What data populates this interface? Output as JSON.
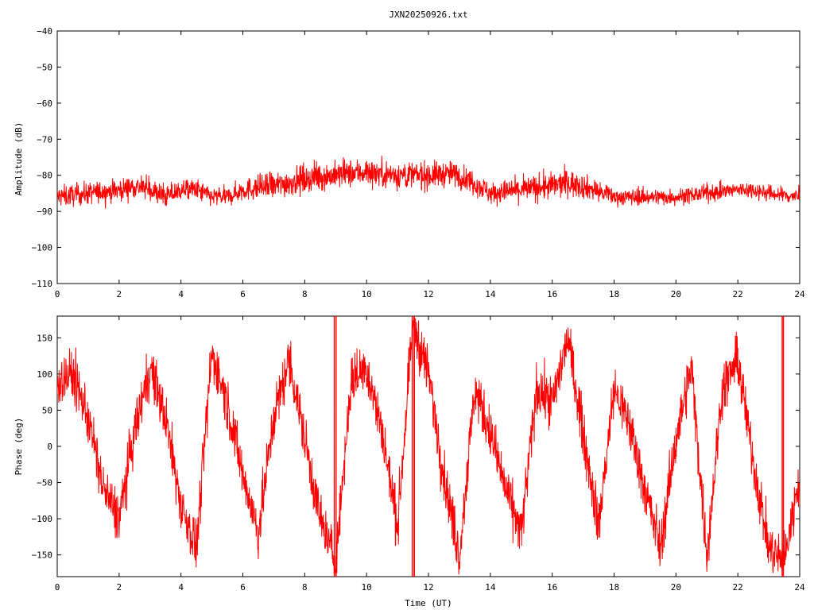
{
  "chart_data": [
    {
      "type": "line",
      "title": "JXN20250926.txt",
      "xlabel": "",
      "ylabel": "Amplitude (dB)",
      "xlim": [
        0,
        24
      ],
      "ylim": [
        -110,
        -40
      ],
      "x_ticks": [
        0,
        2,
        4,
        6,
        8,
        10,
        12,
        14,
        16,
        18,
        20,
        22,
        24
      ],
      "y_ticks": [
        -40,
        -50,
        -60,
        -70,
        -80,
        -90,
        -100,
        -110
      ],
      "grid": false,
      "color": "#ff0000",
      "envelope": {
        "x": [
          0,
          1,
          2,
          2.5,
          3,
          3.5,
          4,
          4.5,
          5,
          5.5,
          6,
          7,
          8,
          9,
          10,
          11,
          12,
          12.8,
          13.5,
          14,
          15,
          16,
          16.5,
          17,
          18,
          19,
          20,
          21,
          22,
          22.5,
          23,
          24
        ],
        "mean": [
          -86,
          -85,
          -84,
          -83,
          -84,
          -86,
          -84,
          -84,
          -86,
          -86,
          -84,
          -83,
          -81,
          -80,
          -79,
          -80,
          -80,
          -79.5,
          -82,
          -85,
          -84,
          -83,
          -82,
          -83,
          -86,
          -86,
          -86,
          -85,
          -84,
          -84,
          -85,
          -86
        ],
        "half_range": [
          4,
          4,
          4,
          4,
          4,
          4,
          4,
          4,
          3.5,
          3.5,
          4,
          5,
          5,
          5,
          5,
          5,
          5,
          4.5,
          4.5,
          4,
          4.5,
          5,
          5,
          4.5,
          3,
          3,
          3,
          3,
          3,
          3,
          3,
          3
        ]
      }
    },
    {
      "type": "line",
      "title": "",
      "xlabel": "Time (UT)",
      "ylabel": "Phase (deg)",
      "xlim": [
        0,
        24
      ],
      "ylim": [
        -180,
        180
      ],
      "x_ticks": [
        0,
        2,
        4,
        6,
        8,
        10,
        12,
        14,
        16,
        18,
        20,
        22,
        24
      ],
      "y_ticks": [
        150,
        100,
        50,
        0,
        -50,
        -100,
        -150
      ],
      "grid": false,
      "color": "#ff0000",
      "wrap_range": [
        -180,
        180
      ],
      "trend": {
        "x": [
          0,
          0.5,
          1,
          1.5,
          2,
          2.5,
          3,
          3.5,
          4,
          4.5,
          5,
          5.5,
          6,
          6.5,
          7,
          7.5,
          8,
          8.5,
          9,
          9.5,
          10,
          10.5,
          11,
          11.5,
          12,
          12.5,
          13,
          13.5,
          14,
          14.5,
          15,
          15.5,
          16,
          16.5,
          17,
          17.5,
          18,
          18.5,
          19,
          19.5,
          20,
          20.5,
          21,
          21.5,
          22,
          22.5,
          23,
          23.5,
          24
        ],
        "y": [
          90,
          100,
          40,
          -60,
          -100,
          20,
          110,
          40,
          -80,
          -140,
          130,
          60,
          -40,
          -120,
          40,
          120,
          10,
          -100,
          -160,
          90,
          110,
          20,
          -110,
          170,
          100,
          -40,
          -150,
          80,
          20,
          -60,
          -120,
          80,
          60,
          150,
          20,
          -110,
          80,
          30,
          -60,
          -140,
          10,
          110,
          -150,
          80,
          120,
          -20,
          -140,
          -160,
          -40
        ]
      },
      "noise_deg": 35
    }
  ]
}
